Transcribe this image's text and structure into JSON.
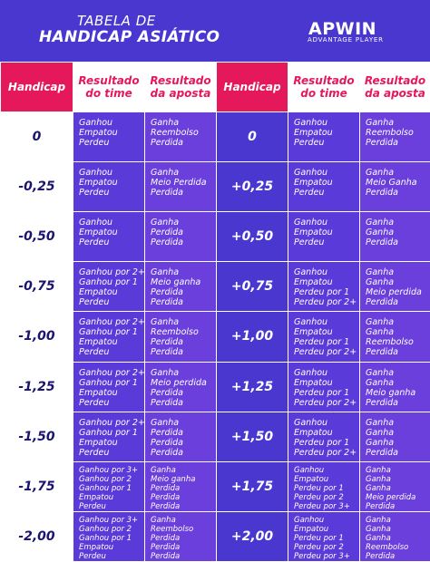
{
  "header": {
    "title_line1": "TABELA DE",
    "title_line2": "HANDICAP ASIÁTICO",
    "brand": "APWIN",
    "brand_sub": "ADVANTAGE PLAYER"
  },
  "columns": {
    "handicap": "Handicap",
    "resultado_time": "Resultado do time",
    "resultado_aposta": "Resultado da aposta"
  },
  "colors": {
    "background": "#4a37d0",
    "header_pink": "#e4185a",
    "white": "#ffffff",
    "value_text_dark": "#1b1470"
  },
  "rows": [
    {
      "left": {
        "handicap": "0",
        "team": [
          "Ganhou",
          "Empatou",
          "Perdeu"
        ],
        "bet": [
          "Ganha",
          "Reembolso",
          "Perdida"
        ]
      },
      "right": {
        "handicap": "0",
        "team": [
          "Ganhou",
          "Empatou",
          "Perdeu"
        ],
        "bet": [
          "Ganha",
          "Reembolso",
          "Perdida"
        ]
      }
    },
    {
      "left": {
        "handicap": "-0,25",
        "team": [
          "Ganhou",
          "Empatou",
          "Perdeu"
        ],
        "bet": [
          "Ganha",
          "Meio Perdida",
          "Perdida"
        ]
      },
      "right": {
        "handicap": "+0,25",
        "team": [
          "Ganhou",
          "Empatou",
          "Perdeu"
        ],
        "bet": [
          "Ganha",
          "Meio Ganha",
          "Perdida"
        ]
      }
    },
    {
      "left": {
        "handicap": "-0,50",
        "team": [
          "Ganhou",
          "Empatou",
          "Perdeu"
        ],
        "bet": [
          "Ganha",
          "Perdida",
          "Perdida"
        ]
      },
      "right": {
        "handicap": "+0,50",
        "team": [
          "Ganhou",
          "Empatou",
          "Perdeu"
        ],
        "bet": [
          "Ganha",
          "Ganha",
          "Perdida"
        ]
      }
    },
    {
      "left": {
        "handicap": "-0,75",
        "team": [
          "Ganhou por 2+",
          "Ganhou por 1",
          "Empatou",
          "Perdeu"
        ],
        "bet": [
          "Ganha",
          "Meio ganha",
          "Perdida",
          "Perdida"
        ]
      },
      "right": {
        "handicap": "+0,75",
        "team": [
          "Ganhou",
          "Empatou",
          "Perdeu por 1",
          "Perdeu por 2+"
        ],
        "bet": [
          "Ganha",
          "Ganha",
          "Meio perdida",
          "Perdida"
        ]
      }
    },
    {
      "left": {
        "handicap": "-1,00",
        "team": [
          "Ganhou por 2+",
          "Ganhou por 1",
          "Empatou",
          "Perdeu"
        ],
        "bet": [
          "Ganha",
          "Reembolso",
          "Perdida",
          "Perdida"
        ]
      },
      "right": {
        "handicap": "+1,00",
        "team": [
          "Ganhou",
          "Empatou",
          "Perdeu por 1",
          "Perdeu por 2+"
        ],
        "bet": [
          "Ganha",
          "Ganha",
          "Reembolso",
          "Perdida"
        ]
      }
    },
    {
      "left": {
        "handicap": "-1,25",
        "team": [
          "Ganhou por 2+",
          "Ganhou por 1",
          "Empatou",
          "Perdeu"
        ],
        "bet": [
          "Ganha",
          "Meio perdida",
          "Perdida",
          "Perdida"
        ]
      },
      "right": {
        "handicap": "+1,25",
        "team": [
          "Ganhou",
          "Empatou",
          "Perdeu por 1",
          "Perdeu por 2+"
        ],
        "bet": [
          "Ganha",
          "Ganha",
          "Meio ganha",
          "Perdida"
        ]
      }
    },
    {
      "left": {
        "handicap": "-1,50",
        "team": [
          "Ganhou por 2+",
          "Ganhou por 1",
          "Empatou",
          "Perdeu"
        ],
        "bet": [
          "Ganha",
          "Perdida",
          "Perdida",
          "Perdida"
        ]
      },
      "right": {
        "handicap": "+1,50",
        "team": [
          "Ganhou",
          "Empatou",
          "Perdeu por 1",
          "Perdeu por 2+"
        ],
        "bet": [
          "Ganha",
          "Ganha",
          "Ganha",
          "Perdida"
        ]
      }
    },
    {
      "left": {
        "handicap": "-1,75",
        "team": [
          "Ganhou por 3+",
          "Ganhou por 2",
          "Ganhou por 1",
          "Empatou",
          "Perdeu"
        ],
        "bet": [
          "Ganha",
          "Meio ganha",
          "Perdida",
          "Perdida",
          "Perdida"
        ]
      },
      "right": {
        "handicap": "+1,75",
        "team": [
          "Ganhou",
          "Empatou",
          "Perdeu por 1",
          "Perdeu por 2",
          "Perdeu por 3+"
        ],
        "bet": [
          "Ganha",
          "Ganha",
          "Ganha",
          "Meio perdida",
          "Perdida"
        ]
      }
    },
    {
      "left": {
        "handicap": "-2,00",
        "team": [
          "Ganhou por 3+",
          "Ganhou por 2",
          "Ganhou por 1",
          "Empatou",
          "Perdeu"
        ],
        "bet": [
          "Ganha",
          "Reembolso",
          "Perdida",
          "Perdida",
          "Perdida"
        ]
      },
      "right": {
        "handicap": "+2,00",
        "team": [
          "Ganhou",
          "Empatou",
          "Perdeu por 1",
          "Perdeu por 2",
          "Perdeu por 3+"
        ],
        "bet": [
          "Ganha",
          "Ganha",
          "Ganha",
          "Reembolso",
          "Perdida"
        ]
      }
    }
  ]
}
